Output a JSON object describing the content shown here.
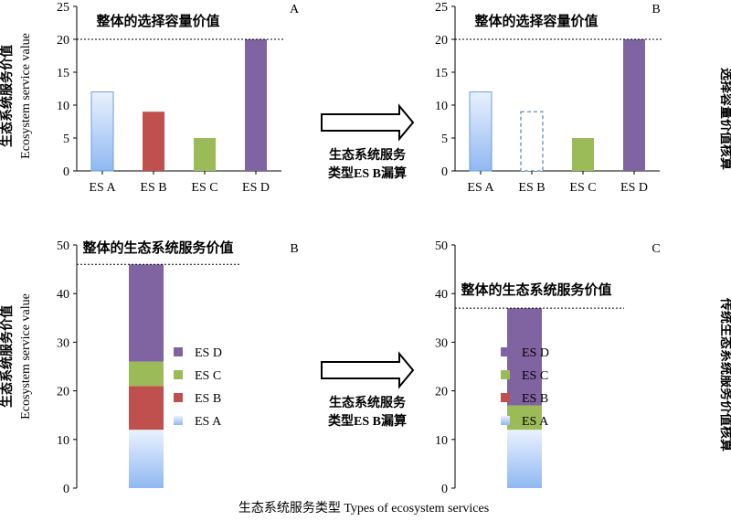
{
  "figure": {
    "shared_ylabel_cn": "生态系统服务价值",
    "shared_ylabel_en": "Ecosystem service value",
    "shared_xlabel": "生态系统服务类型 Types of ecosystem services",
    "row_labels": [
      "选择容量价值核算",
      "传统生态系统服务价值核算"
    ],
    "arrow_text": [
      "生态系统服务",
      "类型ES B漏算"
    ]
  },
  "colors": {
    "ES A": "#a9c9f4",
    "ES B": "#c0504d",
    "ES C": "#9bbb59",
    "ES D": "#8064a2",
    "ES A gradient top": "#eaf2fd",
    "ES A gradient bottom": "#8fb8f2",
    "missing outline": "#4f81bd"
  },
  "chart_data": [
    {
      "type": "bar",
      "panel": "A",
      "title": "整体的选择容量价值",
      "categories": [
        "ES A",
        "ES B",
        "ES C",
        "ES D"
      ],
      "values": [
        12,
        9,
        5,
        20
      ],
      "ylim": [
        0,
        25
      ],
      "yticks": [
        0,
        5,
        10,
        15,
        20,
        25
      ],
      "reference_line": 20,
      "grid": false
    },
    {
      "type": "bar",
      "panel": "B",
      "title": "整体的选择容量价值",
      "categories": [
        "ES A",
        "ES B",
        "ES C",
        "ES D"
      ],
      "values": [
        12,
        9,
        5,
        20
      ],
      "missing": [
        "ES B"
      ],
      "ylim": [
        0,
        25
      ],
      "yticks": [
        0,
        5,
        10,
        15,
        20,
        25
      ],
      "reference_line": 20,
      "grid": false
    },
    {
      "type": "bar",
      "stacked": true,
      "panel": "B",
      "title": "整体的生态系统服务价值",
      "series": [
        {
          "name": "ES A",
          "values": [
            12
          ]
        },
        {
          "name": "ES B",
          "values": [
            9
          ]
        },
        {
          "name": "ES C",
          "values": [
            5
          ]
        },
        {
          "name": "ES D",
          "values": [
            20
          ]
        }
      ],
      "total": 46,
      "ylim": [
        0,
        50
      ],
      "yticks": [
        0,
        10,
        20,
        30,
        40,
        50
      ],
      "legend": "right",
      "grid": false
    },
    {
      "type": "bar",
      "stacked": true,
      "panel": "C",
      "title": "整体的生态系统服务价值",
      "series": [
        {
          "name": "ES A",
          "values": [
            12
          ]
        },
        {
          "name": "ES B",
          "values": [
            0
          ]
        },
        {
          "name": "ES C",
          "values": [
            5
          ]
        },
        {
          "name": "ES D",
          "values": [
            20
          ]
        }
      ],
      "total": 37,
      "ylim": [
        0,
        50
      ],
      "yticks": [
        0,
        10,
        20,
        30,
        40,
        50
      ],
      "legend": "right",
      "grid": false
    }
  ]
}
